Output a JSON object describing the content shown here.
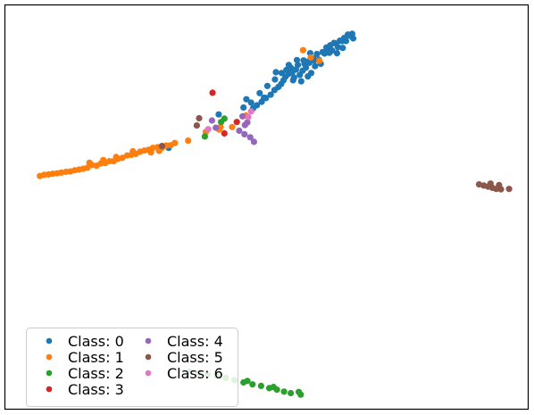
{
  "chart_data": {
    "type": "scatter",
    "title": "",
    "xlabel": "",
    "ylabel": "",
    "xlim": [
      0,
      100
    ],
    "ylim": [
      0,
      100
    ],
    "axes_visible": false,
    "grid": false,
    "legend_position": "lower-left",
    "legend_columns": 2,
    "series": [
      {
        "name": "Class: 0",
        "color": "#1f77b4",
        "points": [
          [
            45.2,
            76.2
          ],
          [
            46.0,
            77.0
          ],
          [
            47.0,
            77.9
          ],
          [
            47.9,
            78.9
          ],
          [
            48.9,
            79.8
          ],
          [
            49.7,
            81.0
          ],
          [
            50.5,
            81.8
          ],
          [
            51.1,
            82.6
          ],
          [
            51.6,
            83.6
          ],
          [
            52.0,
            84.5
          ],
          [
            52.2,
            86.3
          ],
          [
            52.6,
            85.2
          ],
          [
            53.1,
            86.9
          ],
          [
            53.4,
            85.7
          ],
          [
            53.8,
            84.3
          ],
          [
            54.2,
            86.4
          ],
          [
            54.6,
            87.6
          ],
          [
            55.0,
            85.0
          ],
          [
            55.3,
            83.3
          ],
          [
            55.6,
            86.1
          ],
          [
            56.0,
            87.9
          ],
          [
            56.3,
            86.9
          ],
          [
            56.7,
            84.6
          ],
          [
            57.0,
            88.2
          ],
          [
            57.4,
            85.5
          ],
          [
            57.8,
            89.3
          ],
          [
            58.2,
            87.3
          ],
          [
            58.6,
            90.5
          ],
          [
            59.0,
            89.0
          ],
          [
            59.4,
            87.9
          ],
          [
            59.8,
            91.0
          ],
          [
            60.2,
            90.6
          ],
          [
            60.6,
            92.2
          ],
          [
            61.0,
            91.7
          ],
          [
            61.4,
            92.8
          ],
          [
            61.8,
            91.4
          ],
          [
            62.2,
            93.4
          ],
          [
            62.6,
            93.2
          ],
          [
            63.0,
            92.3
          ],
          [
            63.4,
            94.0
          ],
          [
            63.9,
            93.9
          ],
          [
            64.3,
            94.7
          ],
          [
            64.7,
            93.9
          ],
          [
            65.1,
            95.6
          ],
          [
            65.4,
            95.3
          ],
          [
            66.0,
            95.8
          ],
          [
            66.2,
            94.6
          ],
          [
            56.8,
            88.5
          ],
          [
            58.0,
            88.8
          ],
          [
            54.4,
            88.9
          ],
          [
            51.2,
            85.5
          ],
          [
            50.0,
            85.7
          ],
          [
            47.5,
            79.0
          ],
          [
            46.6,
            80.2
          ],
          [
            44.8,
            77.7
          ],
          [
            43.8,
            78.6
          ],
          [
            43.2,
            76.4
          ],
          [
            38.0,
            74.6
          ],
          [
            27.5,
            65.8
          ],
          [
            61.2,
            90.8
          ],
          [
            62.8,
            90.7
          ],
          [
            64.0,
            92.1
          ],
          [
            57.2,
            90.7
          ],
          [
            55.8,
            88.8
          ],
          [
            53.6,
            83.6
          ],
          [
            52.7,
            87.6
          ],
          [
            49.8,
            83.8
          ],
          [
            48.2,
            82.1
          ]
        ]
      },
      {
        "name": "Class: 1",
        "color": "#ff7f0e",
        "points": [
          [
            0.5,
            58.4
          ],
          [
            1.4,
            58.7
          ],
          [
            2.3,
            58.8
          ],
          [
            3.2,
            59.0
          ],
          [
            4.1,
            59.1
          ],
          [
            5.0,
            59.3
          ],
          [
            6.0,
            59.5
          ],
          [
            6.9,
            59.6
          ],
          [
            7.8,
            59.9
          ],
          [
            8.7,
            60.1
          ],
          [
            9.6,
            60.3
          ],
          [
            10.5,
            60.6
          ],
          [
            11.4,
            61.3
          ],
          [
            12.4,
            61.1
          ],
          [
            13.3,
            61.7
          ],
          [
            14.2,
            61.8
          ],
          [
            15.1,
            62.3
          ],
          [
            16.0,
            62.3
          ],
          [
            16.9,
            62.9
          ],
          [
            17.8,
            63.2
          ],
          [
            18.8,
            63.8
          ],
          [
            19.7,
            64.0
          ],
          [
            20.6,
            64.2
          ],
          [
            21.5,
            64.8
          ],
          [
            22.4,
            65.1
          ],
          [
            23.3,
            65.3
          ],
          [
            24.2,
            65.8
          ],
          [
            25.2,
            66.0
          ],
          [
            26.1,
            65.8
          ],
          [
            27.0,
            66.4
          ],
          [
            27.9,
            66.5
          ],
          [
            28.8,
            67.1
          ],
          [
            31.6,
            67.7
          ],
          [
            10.9,
            61.9
          ],
          [
            13.8,
            62.6
          ],
          [
            16.5,
            63.4
          ],
          [
            20.0,
            64.9
          ],
          [
            23.8,
            64.6
          ],
          [
            25.5,
            65.0
          ],
          [
            35.3,
            70.0
          ],
          [
            38.1,
            70.6
          ],
          [
            38.4,
            71.3
          ],
          [
            40.8,
            71.3
          ],
          [
            43.7,
            74.3
          ],
          [
            55.7,
            91.5
          ],
          [
            57.3,
            89.6
          ],
          [
            59.1,
            88.7
          ]
        ]
      },
      {
        "name": "Class: 2",
        "color": "#2ca02c",
        "points": [
          [
            39.2,
            73.5
          ],
          [
            38.5,
            72.6
          ],
          [
            35.1,
            68.8
          ],
          [
            31.9,
            6.9
          ],
          [
            33.8,
            6.5
          ],
          [
            35.7,
            6.1
          ],
          [
            37.6,
            5.8
          ],
          [
            39.5,
            5.3
          ],
          [
            41.3,
            4.7
          ],
          [
            43.2,
            4.1
          ],
          [
            45.1,
            3.6
          ],
          [
            46.9,
            3.2
          ],
          [
            48.6,
            2.6
          ],
          [
            50.2,
            2.2
          ],
          [
            51.7,
            1.7
          ],
          [
            53.1,
            1.3
          ],
          [
            54.8,
            1.6
          ],
          [
            55.2,
            0.9
          ],
          [
            44.0,
            4.5
          ],
          [
            49.5,
            2.9
          ]
        ]
      },
      {
        "name": "Class: 3",
        "color": "#d62728",
        "points": [
          [
            36.7,
            80.3
          ],
          [
            41.8,
            72.6
          ],
          [
            39.2,
            69.6
          ]
        ]
      },
      {
        "name": "Class: 4",
        "color": "#9467bd",
        "points": [
          [
            36.6,
            73.0
          ],
          [
            37.4,
            71.1
          ],
          [
            42.3,
            70.3
          ],
          [
            43.4,
            69.4
          ],
          [
            44.6,
            68.6
          ],
          [
            45.4,
            67.4
          ],
          [
            43.0,
            74.1
          ],
          [
            44.0,
            72.5
          ],
          [
            43.5,
            71.8
          ]
        ]
      },
      {
        "name": "Class: 5",
        "color": "#8c564b",
        "points": [
          [
            33.9,
            73.6
          ],
          [
            33.4,
            71.7
          ],
          [
            26.1,
            66.3
          ],
          [
            92.6,
            56.2
          ],
          [
            93.6,
            55.9
          ],
          [
            94.5,
            55.6
          ],
          [
            95.4,
            55.3
          ],
          [
            96.2,
            55.0
          ],
          [
            97.2,
            54.9
          ],
          [
            98.9,
            55.0
          ],
          [
            95.0,
            56.4
          ],
          [
            96.8,
            56.0
          ]
        ]
      },
      {
        "name": "Class: 6",
        "color": "#e377c2",
        "points": [
          [
            35.8,
            70.7
          ],
          [
            44.2,
            73.9
          ],
          [
            44.8,
            75.4
          ]
        ]
      }
    ]
  }
}
